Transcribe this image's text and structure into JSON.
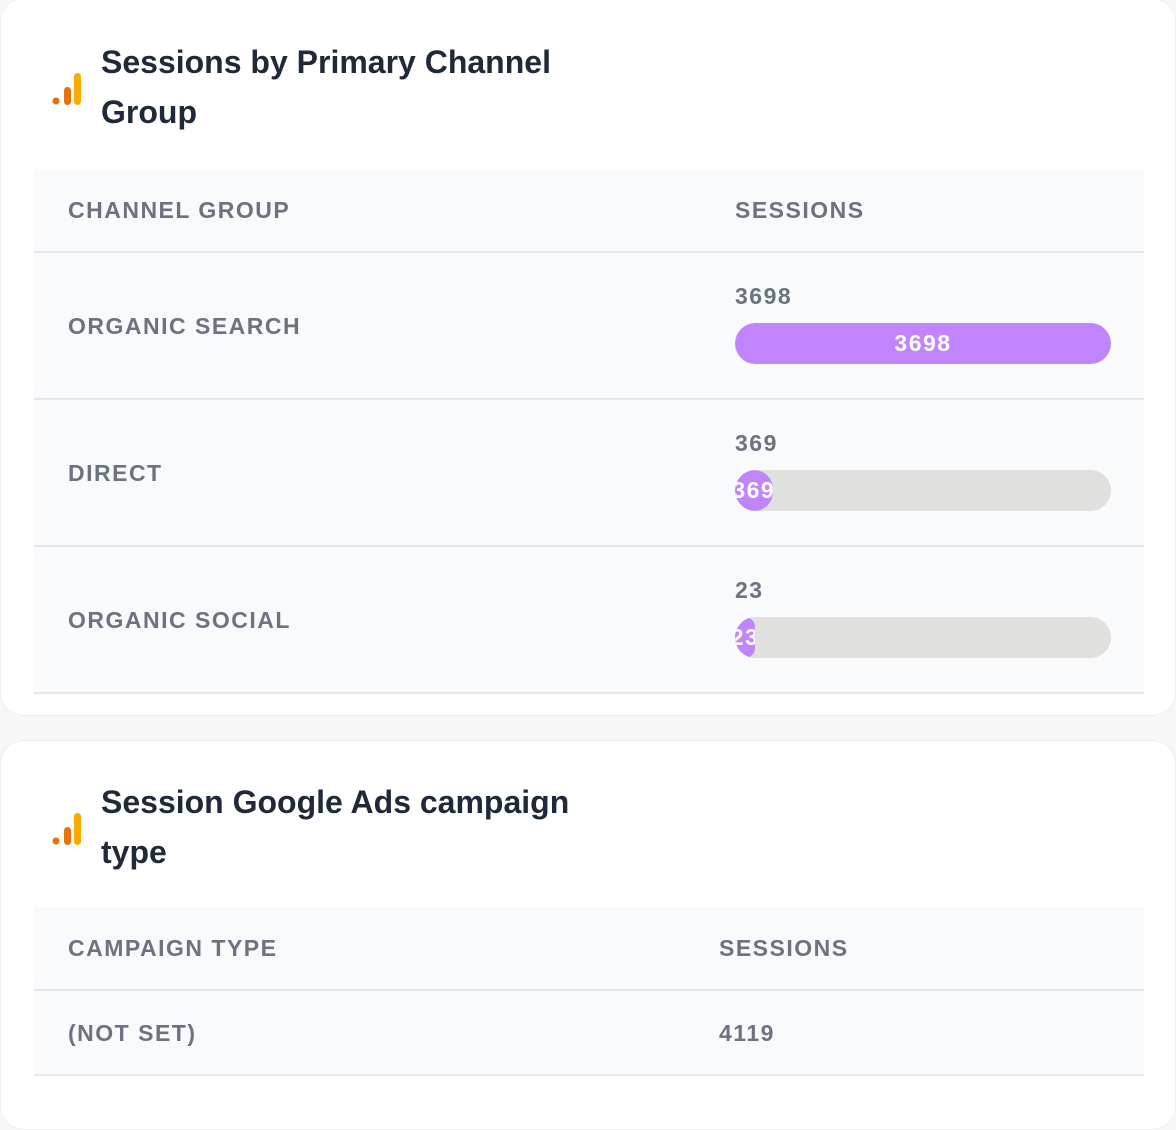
{
  "cards": [
    {
      "title": "Sessions by Primary Channel Group",
      "table": {
        "headers": [
          "CHANNEL GROUP",
          "SESSIONS"
        ],
        "rows": [
          [
            "ORGANIC SEARCH",
            3698
          ],
          [
            "DIRECT",
            369
          ],
          [
            "ORGANIC SOCIAL",
            23
          ]
        ]
      }
    },
    {
      "title": "Session Google Ads campaign type",
      "table": {
        "headers": [
          "CAMPAIGN TYPE",
          "SESSIONS"
        ],
        "rows": [
          [
            "(NOT SET)",
            4119
          ]
        ]
      }
    }
  ]
}
